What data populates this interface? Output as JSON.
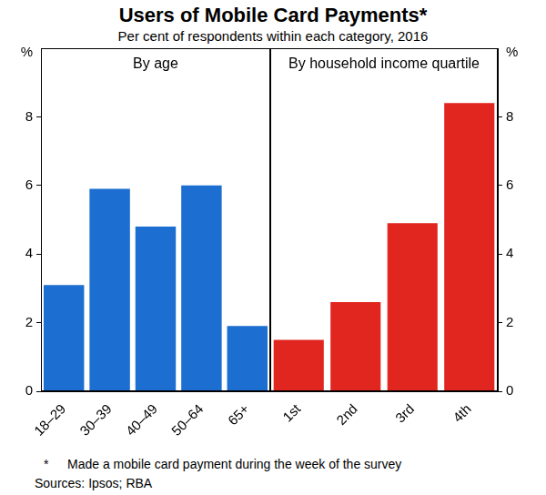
{
  "title": "Users of Mobile Card Payments*",
  "subtitle": "Per cent of respondents within each category, 2016",
  "footnote": {
    "mark": "*",
    "text": "Made a mobile card payment during the week of the survey"
  },
  "sources": "Sources: Ipsos; RBA",
  "chart_data": [
    {
      "type": "bar",
      "title": "By age",
      "y_label": "%",
      "categories": [
        "18–29",
        "30–39",
        "40–49",
        "50–64",
        "65+"
      ],
      "values": [
        3.1,
        5.9,
        4.8,
        6.0,
        1.9
      ],
      "color": "#1c6fd1",
      "ylim": [
        0,
        10
      ],
      "yticks": [
        0,
        2,
        4,
        6,
        8
      ],
      "grid": false
    },
    {
      "type": "bar",
      "title": "By household income quartile",
      "y_label": "%",
      "categories": [
        "1st",
        "2nd",
        "3rd",
        "4th"
      ],
      "values": [
        1.5,
        2.6,
        4.9,
        8.4
      ],
      "color": "#e0261f",
      "ylim": [
        0,
        10
      ],
      "yticks": [
        0,
        2,
        4,
        6,
        8
      ],
      "grid": false
    }
  ]
}
